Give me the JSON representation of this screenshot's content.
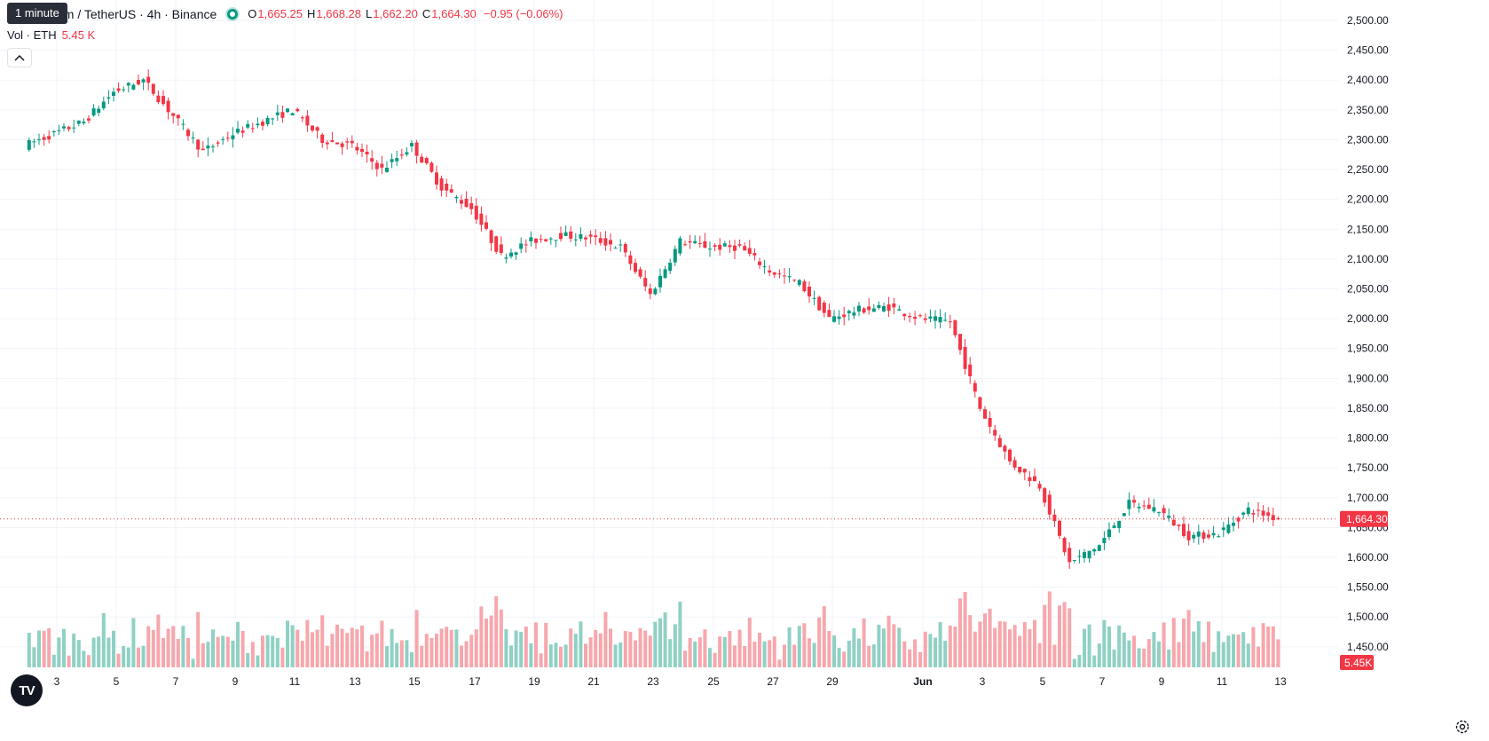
{
  "legend": {
    "tooltip": "1 minute",
    "symbol_title": "um / TetherUS · 4h · Binance",
    "open_label": "O",
    "open": "1,665.25",
    "high_label": "H",
    "high": "1,668.28",
    "low_label": "L",
    "low": "1,662.20",
    "close_label": "C",
    "close": "1,664.30",
    "change": "−0.95 (−0.06%)"
  },
  "volume_legend": {
    "label": "Vol · ETH",
    "value": "5.45 K"
  },
  "price_axis": {
    "ticks": [
      "2,500.00",
      "2,450.00",
      "2,400.00",
      "2,350.00",
      "2,300.00",
      "2,250.00",
      "2,200.00",
      "2,150.00",
      "2,100.00",
      "2,050.00",
      "2,000.00",
      "1,950.00",
      "1,900.00",
      "1,850.00",
      "1,800.00",
      "1,750.00",
      "1,700.00",
      "1,650.00",
      "1,600.00",
      "1,550.00",
      "1,500.00",
      "1,450.00"
    ],
    "last_price_label": "1,664.30",
    "volume_label": "5.45K"
  },
  "time_axis": {
    "labels": [
      "3",
      "5",
      "7",
      "9",
      "11",
      "13",
      "15",
      "17",
      "19",
      "21",
      "23",
      "25",
      "27",
      "29",
      "Jun",
      "3",
      "5",
      "7",
      "9",
      "11",
      "13"
    ]
  },
  "colors": {
    "up": "#089981",
    "down": "#f23645",
    "up_volume": "#8fd1c4",
    "down_volume": "#f7a7ac",
    "grid": "#f0f3fa"
  },
  "icons": {
    "logo": "tradingview-logo-icon",
    "settings": "settings-gear-icon",
    "collapse": "chevron-up-icon"
  },
  "chart_data": {
    "type": "candlestick",
    "symbol": "ETH/USDT",
    "interval": "4h",
    "exchange": "Binance",
    "ylim": [
      1420,
      2500
    ],
    "last_price": 1664.3,
    "series_close_anchors": [
      {
        "date": "May 2",
        "close": 2290
      },
      {
        "date": "May 4",
        "close": 2330
      },
      {
        "date": "May 5",
        "close": 2380
      },
      {
        "date": "May 6",
        "close": 2400
      },
      {
        "date": "May 7",
        "close": 2340
      },
      {
        "date": "May 8",
        "close": 2280
      },
      {
        "date": "May 9",
        "close": 2310
      },
      {
        "date": "May 10",
        "close": 2330
      },
      {
        "date": "May 11",
        "close": 2350
      },
      {
        "date": "May 12",
        "close": 2300
      },
      {
        "date": "May 13",
        "close": 2290
      },
      {
        "date": "May 14",
        "close": 2250
      },
      {
        "date": "May 15",
        "close": 2290
      },
      {
        "date": "May 16",
        "close": 2220
      },
      {
        "date": "May 17",
        "close": 2185
      },
      {
        "date": "May 18",
        "close": 2105
      },
      {
        "date": "May 19",
        "close": 2130
      },
      {
        "date": "May 20",
        "close": 2140
      },
      {
        "date": "May 21",
        "close": 2135
      },
      {
        "date": "May 22",
        "close": 2120
      },
      {
        "date": "May 23",
        "close": 2040
      },
      {
        "date": "May 24",
        "close": 2130
      },
      {
        "date": "May 25",
        "close": 2120
      },
      {
        "date": "May 26",
        "close": 2120
      },
      {
        "date": "May 27",
        "close": 2080
      },
      {
        "date": "May 28",
        "close": 2060
      },
      {
        "date": "May 29",
        "close": 2000
      },
      {
        "date": "May 30",
        "close": 2015
      },
      {
        "date": "May 31",
        "close": 2020
      },
      {
        "date": "Jun 1",
        "close": 2000
      },
      {
        "date": "Jun 2",
        "close": 1995
      },
      {
        "date": "Jun 3",
        "close": 1850
      },
      {
        "date": "Jun 4",
        "close": 1760
      },
      {
        "date": "Jun 5",
        "close": 1720
      },
      {
        "date": "Jun 6",
        "close": 1590
      },
      {
        "date": "Jun 7",
        "close": 1620
      },
      {
        "date": "Jun 8",
        "close": 1690
      },
      {
        "date": "Jun 9",
        "close": 1680
      },
      {
        "date": "Jun 10",
        "close": 1635
      },
      {
        "date": "Jun 11",
        "close": 1640
      },
      {
        "date": "Jun 12",
        "close": 1680
      },
      {
        "date": "Jun 13",
        "close": 1664.3
      }
    ],
    "x_labels": [
      "3",
      "5",
      "7",
      "9",
      "11",
      "13",
      "15",
      "17",
      "19",
      "21",
      "23",
      "25",
      "27",
      "29",
      "Jun",
      "3",
      "5",
      "7",
      "9",
      "11",
      "13"
    ],
    "grid": true
  }
}
